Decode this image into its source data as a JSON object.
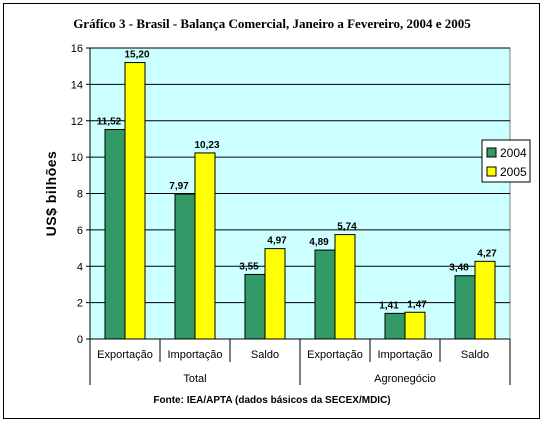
{
  "chart_data": {
    "type": "bar",
    "title": "Gráfico 3 - Brasil - Balança Comercial, Janeiro a Fevereiro, 2004 e 2005",
    "ylabel": "US$ bilhões",
    "xlabel": "",
    "ylim": [
      0,
      16
    ],
    "yticks": [
      0,
      2,
      4,
      6,
      8,
      10,
      12,
      14,
      16
    ],
    "grid": true,
    "legend_position": "right",
    "categories": [
      "Exportação",
      "Importação",
      "Saldo",
      "Exportação",
      "Importação",
      "Saldo"
    ],
    "groups": [
      {
        "label": "Total",
        "span": [
          0,
          2
        ]
      },
      {
        "label": "Agronegócio",
        "span": [
          3,
          5
        ]
      }
    ],
    "series": [
      {
        "name": "2004",
        "color": "#339966",
        "values": [
          11.52,
          7.97,
          3.55,
          4.89,
          1.41,
          3.48
        ],
        "labels": [
          "11,52",
          "7,97",
          "3,55",
          "4,89",
          "1,41",
          "3,48"
        ]
      },
      {
        "name": "2005",
        "color": "#ffff00",
        "values": [
          15.2,
          10.23,
          4.97,
          5.74,
          1.47,
          4.27
        ],
        "labels": [
          "15,20",
          "10,23",
          "4,97",
          "5,74",
          "1,47",
          "4,27"
        ]
      }
    ],
    "plot_background": "#ccffff",
    "source": "Fonte: IEA/APTA (dados básicos da SECEX/MDIC)"
  }
}
